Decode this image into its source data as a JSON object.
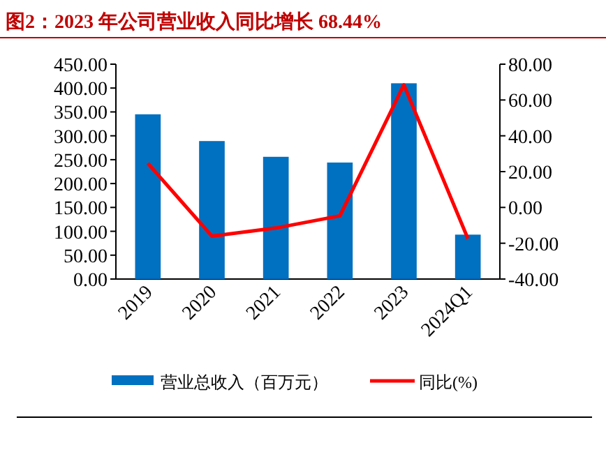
{
  "chart_data": {
    "type": "bar",
    "title": "图2：2023 年公司营业收入同比增长 68.44%",
    "categories": [
      "2019",
      "2020",
      "2021",
      "2022",
      "2023",
      "2024Q1"
    ],
    "series": [
      {
        "name": "营业总收入（百万元）",
        "color": "#0070c0",
        "values": [
          345,
          289,
          256,
          244,
          410,
          93
        ]
      },
      {
        "name": "同比(%)",
        "type": "line",
        "axis": "y2",
        "color": "#ff0000",
        "values": [
          24.6,
          -16,
          -11.5,
          -4.7,
          68.44,
          -17.4
        ]
      }
    ],
    "ylim": [
      0,
      450
    ],
    "yticks": [
      {
        "value": 0,
        "label": "0.00"
      },
      {
        "value": 50,
        "label": "50.00"
      },
      {
        "value": 100,
        "label": "100.00"
      },
      {
        "value": 150,
        "label": "150.00"
      },
      {
        "value": 200,
        "label": "200.00"
      },
      {
        "value": 250,
        "label": "250.00"
      },
      {
        "value": 300,
        "label": "300.00"
      },
      {
        "value": 350,
        "label": "350.00"
      },
      {
        "value": 400,
        "label": "400.00"
      },
      {
        "value": 450,
        "label": "450.00"
      }
    ],
    "y2lim": [
      -40,
      80
    ],
    "y2ticks": [
      {
        "value": -40,
        "label": "-40.00"
      },
      {
        "value": -20,
        "label": "-20.00"
      },
      {
        "value": 0,
        "label": "0.00"
      },
      {
        "value": 20,
        "label": "20.00"
      },
      {
        "value": 40,
        "label": "40.00"
      },
      {
        "value": 60,
        "label": "60.00"
      },
      {
        "value": 80,
        "label": "80.00"
      }
    ],
    "legend": "bottom"
  }
}
